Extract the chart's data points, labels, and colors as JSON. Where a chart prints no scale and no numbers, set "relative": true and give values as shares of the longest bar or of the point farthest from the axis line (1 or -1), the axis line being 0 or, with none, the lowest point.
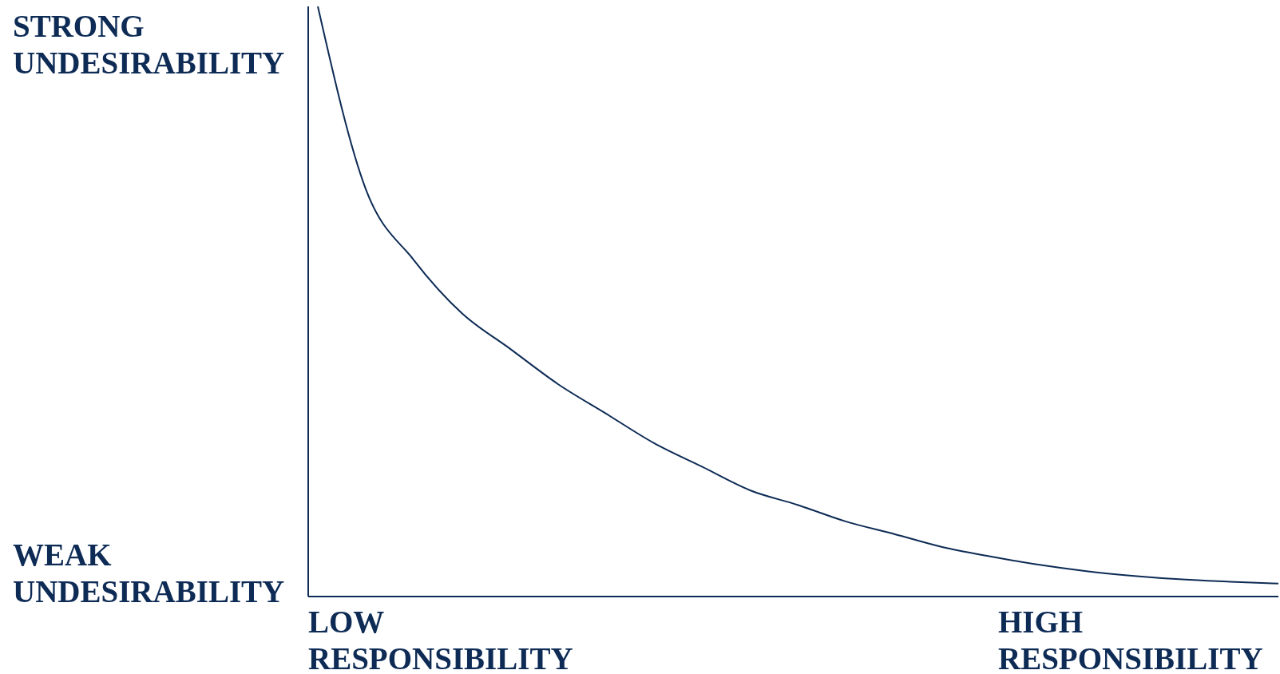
{
  "chart_data": {
    "type": "line",
    "relative": true,
    "categories": [
      null,
      null,
      null,
      null,
      null,
      null,
      null,
      null,
      null,
      null,
      null,
      null,
      null,
      null,
      null,
      null,
      null,
      null,
      null,
      null,
      null
    ],
    "series": [
      {
        "color": "#0d2b55",
        "values": [
          1,
          0.69,
          0.57,
          0.48,
          0.42,
          0.36,
          0.31,
          0.26,
          0.22,
          0.18,
          0.155,
          0.127,
          0.106,
          0.084,
          0.068,
          0.054,
          0.043,
          0.035,
          0.029,
          0.025,
          0.022
        ]
      }
    ],
    "annotations": [
      "STRONG UNDESIRABILITY",
      "WEAK UNDESIRABILITY",
      "LOW RESPONSIBILITY",
      "HIGH RESPONSIBILITY"
    ],
    "marker": "none",
    "line_style": "solid",
    "grid": false
  }
}
